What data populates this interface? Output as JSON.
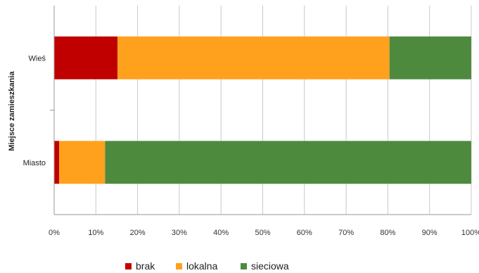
{
  "chart_data": {
    "type": "bar",
    "orientation": "horizontal",
    "stacked": true,
    "percent_stacked": true,
    "categories": [
      "Wieś",
      "Miasto"
    ],
    "series": [
      {
        "name": "brak",
        "color": "#c00000",
        "values": [
          15.2,
          1.2
        ]
      },
      {
        "name": "lokalna",
        "color": "#ffa11c",
        "values": [
          65.2,
          11.0
        ]
      },
      {
        "name": "sieciowa",
        "color": "#4e8a3e",
        "values": [
          19.6,
          87.8
        ]
      }
    ],
    "xticks": [
      "0%",
      "10%",
      "20%",
      "30%",
      "40%",
      "50%",
      "60%",
      "70%",
      "80%",
      "90%",
      "100%"
    ],
    "xlim": [
      0,
      100
    ],
    "ylabel": "Miejsce zamieszkania",
    "xlabel": "",
    "title": "",
    "grid": true,
    "legend_position": "bottom"
  }
}
